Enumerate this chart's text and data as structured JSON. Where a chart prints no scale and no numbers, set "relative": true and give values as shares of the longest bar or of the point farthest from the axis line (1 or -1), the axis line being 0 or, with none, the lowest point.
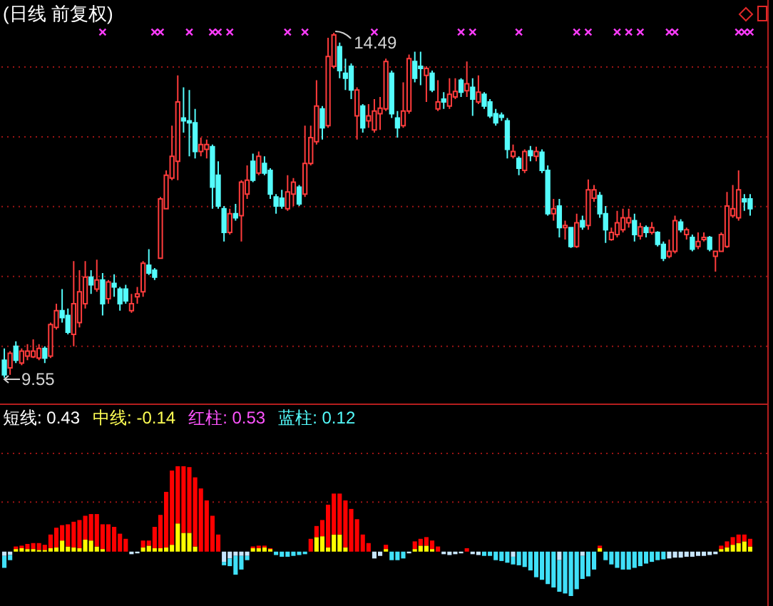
{
  "chart_data": [
    {
      "type": "candlestick",
      "title": "(日线 前复权)",
      "categories": [
        null,
        null,
        null,
        null,
        null,
        null,
        null,
        null,
        null,
        null,
        null,
        null,
        null,
        null,
        null,
        null,
        null,
        null,
        null,
        null,
        null,
        null,
        null,
        null,
        null,
        null,
        null,
        null,
        null,
        null,
        null,
        null,
        null,
        null,
        null,
        null,
        null,
        null,
        null,
        null,
        null,
        null,
        null,
        null,
        null,
        null,
        null,
        null,
        null,
        null,
        null,
        null,
        null,
        null,
        null,
        null,
        null,
        null,
        null,
        null,
        null,
        null,
        null,
        null,
        null,
        null,
        null,
        null,
        null,
        null,
        null,
        null,
        null,
        null,
        null,
        null,
        null,
        null,
        null,
        null,
        null,
        null,
        null,
        null,
        null,
        null,
        null,
        null,
        null,
        null,
        null,
        null,
        null,
        null,
        null,
        null,
        null,
        null,
        null,
        null,
        null,
        null,
        null,
        null,
        null,
        null,
        null,
        null,
        null,
        null,
        null,
        null,
        null,
        null,
        null,
        null,
        null,
        null,
        null,
        null,
        null,
        null,
        null,
        null,
        null,
        null,
        null,
        null,
        null,
        null
      ],
      "ohlc": [
        [
          9.8,
          9.97,
          9.55,
          9.59
        ],
        [
          9.69,
          9.93,
          9.59,
          9.9
        ],
        [
          10.0,
          10.07,
          9.76,
          9.8
        ],
        [
          9.76,
          9.97,
          9.73,
          9.93
        ],
        [
          9.86,
          10.03,
          9.8,
          9.93
        ],
        [
          9.85,
          10.1,
          9.83,
          9.93
        ],
        [
          9.83,
          10.03,
          9.8,
          9.97
        ],
        [
          9.97,
          10.0,
          9.76,
          9.83
        ],
        [
          9.86,
          10.34,
          9.83,
          10.31
        ],
        [
          10.27,
          10.61,
          10.24,
          10.51
        ],
        [
          10.51,
          10.82,
          10.34,
          10.41
        ],
        [
          10.44,
          10.54,
          10.17,
          10.2
        ],
        [
          10.17,
          11.22,
          10.0,
          10.61
        ],
        [
          10.34,
          11.09,
          10.27,
          10.78
        ],
        [
          10.61,
          11.22,
          10.54,
          10.99
        ],
        [
          10.99,
          11.09,
          10.75,
          10.88
        ],
        [
          10.82,
          11.24,
          10.78,
          10.95
        ],
        [
          10.95,
          11.05,
          10.44,
          10.61
        ],
        [
          10.68,
          10.95,
          10.61,
          10.92
        ],
        [
          10.9,
          11.03,
          10.71,
          10.85
        ],
        [
          10.82,
          10.85,
          10.51,
          10.61
        ],
        [
          10.82,
          10.88,
          10.61,
          10.65
        ],
        [
          10.51,
          10.75,
          10.48,
          10.61
        ],
        [
          10.71,
          10.85,
          10.61,
          10.75
        ],
        [
          10.78,
          11.22,
          10.71,
          11.19
        ],
        [
          11.16,
          11.39,
          11.02,
          11.05
        ],
        [
          11.09,
          11.12,
          10.95,
          10.99
        ],
        [
          11.26,
          12.14,
          11.26,
          12.11
        ],
        [
          11.97,
          12.52,
          11.97,
          12.45
        ],
        [
          12.41,
          13.16,
          12.38,
          12.72
        ],
        [
          12.65,
          13.88,
          12.38,
          13.5
        ],
        [
          13.27,
          13.71,
          13.06,
          13.23
        ],
        [
          13.23,
          13.67,
          12.72,
          13.2
        ],
        [
          13.2,
          13.4,
          12.69,
          12.79
        ],
        [
          12.79,
          12.99,
          12.72,
          12.89
        ],
        [
          12.82,
          12.96,
          12.69,
          12.89
        ],
        [
          12.86,
          12.89,
          11.97,
          12.28
        ],
        [
          12.45,
          12.65,
          11.97,
          12.01
        ],
        [
          11.97,
          12.01,
          11.5,
          11.63
        ],
        [
          11.63,
          11.97,
          11.6,
          11.9
        ],
        [
          11.9,
          12.04,
          11.8,
          11.84
        ],
        [
          11.87,
          12.38,
          11.5,
          12.35
        ],
        [
          12.18,
          12.59,
          12.11,
          12.38
        ],
        [
          12.65,
          12.76,
          12.35,
          12.38
        ],
        [
          12.48,
          12.79,
          12.45,
          12.72
        ],
        [
          12.62,
          12.72,
          12.45,
          12.48
        ],
        [
          12.52,
          12.55,
          12.11,
          12.18
        ],
        [
          12.14,
          12.18,
          11.9,
          12.01
        ],
        [
          12.12,
          12.24,
          11.97,
          12.01
        ],
        [
          11.97,
          12.45,
          11.94,
          12.21
        ],
        [
          12.18,
          12.41,
          12.01,
          12.35
        ],
        [
          12.28,
          12.31,
          12.01,
          12.04
        ],
        [
          12.18,
          13.16,
          12.14,
          12.62
        ],
        [
          12.62,
          13.16,
          12.59,
          12.99
        ],
        [
          12.93,
          13.81,
          12.89,
          13.44
        ],
        [
          13.4,
          13.44,
          12.96,
          13.13
        ],
        [
          13.16,
          14.42,
          13.13,
          14.15
        ],
        [
          14.01,
          14.49,
          13.98,
          14.46
        ],
        [
          14.29,
          14.35,
          13.84,
          13.95
        ],
        [
          13.91,
          14.12,
          13.67,
          13.84
        ],
        [
          14.01,
          14.05,
          13.54,
          13.67
        ],
        [
          13.3,
          13.71,
          12.96,
          13.67
        ],
        [
          13.44,
          13.47,
          13.06,
          13.13
        ],
        [
          13.23,
          13.47,
          13.13,
          13.3
        ],
        [
          13.1,
          13.54,
          13.06,
          13.37
        ],
        [
          13.33,
          13.57,
          13.1,
          13.41
        ],
        [
          13.4,
          14.12,
          13.37,
          14.08
        ],
        [
          13.91,
          13.95,
          13.27,
          13.33
        ],
        [
          13.27,
          13.37,
          12.99,
          13.13
        ],
        [
          13.16,
          13.78,
          13.13,
          13.37
        ],
        [
          13.37,
          14.18,
          13.33,
          14.12
        ],
        [
          14.08,
          14.22,
          13.78,
          13.84
        ],
        [
          14.01,
          14.22,
          13.74,
          13.98
        ],
        [
          13.88,
          14.01,
          13.5,
          13.98
        ],
        [
          13.91,
          13.95,
          13.64,
          13.67
        ],
        [
          13.4,
          13.81,
          13.37,
          13.5
        ],
        [
          13.54,
          13.64,
          13.4,
          13.5
        ],
        [
          13.44,
          13.84,
          13.4,
          13.61
        ],
        [
          13.57,
          13.84,
          13.54,
          13.65
        ],
        [
          13.81,
          13.84,
          13.57,
          13.64
        ],
        [
          13.66,
          14.08,
          13.57,
          13.76
        ],
        [
          13.71,
          13.84,
          13.3,
          13.54
        ],
        [
          13.5,
          13.88,
          13.47,
          13.64
        ],
        [
          13.61,
          13.64,
          13.4,
          13.44
        ],
        [
          13.5,
          13.54,
          13.27,
          13.3
        ],
        [
          13.33,
          13.4,
          13.16,
          13.2
        ],
        [
          13.31,
          13.35,
          13.23,
          13.28
        ],
        [
          13.23,
          13.27,
          12.69,
          12.82
        ],
        [
          12.72,
          12.89,
          12.69,
          12.79
        ],
        [
          12.69,
          12.72,
          12.45,
          12.55
        ],
        [
          12.52,
          12.82,
          12.48,
          12.79
        ],
        [
          12.8,
          12.87,
          12.65,
          12.73
        ],
        [
          12.72,
          12.86,
          12.65,
          12.79
        ],
        [
          12.78,
          12.82,
          12.48,
          12.52
        ],
        [
          12.52,
          12.59,
          11.87,
          11.9
        ],
        [
          11.9,
          12.11,
          11.8,
          11.97
        ],
        [
          12.01,
          12.11,
          11.56,
          11.7
        ],
        [
          11.7,
          11.8,
          11.53,
          11.73
        ],
        [
          11.7,
          11.71,
          11.41,
          11.43
        ],
        [
          11.43,
          11.9,
          11.41,
          11.77
        ],
        [
          11.8,
          11.87,
          11.67,
          11.71
        ],
        [
          11.73,
          12.39,
          11.67,
          12.24
        ],
        [
          12.12,
          12.31,
          12.07,
          12.24
        ],
        [
          12.16,
          12.21,
          11.84,
          11.9
        ],
        [
          11.9,
          12.01,
          11.48,
          11.67
        ],
        [
          11.53,
          11.7,
          11.51,
          11.63
        ],
        [
          11.6,
          11.94,
          11.56,
          11.77
        ],
        [
          11.67,
          11.97,
          11.63,
          11.84
        ],
        [
          11.77,
          11.97,
          11.7,
          11.84
        ],
        [
          11.8,
          11.9,
          11.5,
          11.6
        ],
        [
          11.58,
          11.77,
          11.53,
          11.71
        ],
        [
          11.7,
          11.73,
          11.56,
          11.63
        ],
        [
          11.63,
          11.78,
          11.6,
          11.7
        ],
        [
          11.63,
          11.65,
          11.43,
          11.46
        ],
        [
          11.46,
          11.5,
          11.22,
          11.26
        ],
        [
          11.29,
          11.53,
          11.26,
          11.36
        ],
        [
          11.36,
          11.87,
          11.33,
          11.8
        ],
        [
          11.78,
          11.82,
          11.63,
          11.67
        ],
        [
          11.6,
          11.7,
          11.53,
          11.67
        ],
        [
          11.56,
          11.6,
          11.36,
          11.39
        ],
        [
          11.43,
          11.63,
          11.39,
          11.5
        ],
        [
          11.53,
          11.63,
          11.5,
          11.56
        ],
        [
          11.56,
          11.58,
          11.36,
          11.39
        ],
        [
          11.29,
          11.37,
          11.07,
          11.36
        ],
        [
          11.36,
          11.63,
          11.35,
          11.6
        ],
        [
          11.43,
          12.21,
          11.41,
          12.01
        ],
        [
          11.87,
          12.31,
          11.84,
          11.97
        ],
        [
          11.84,
          12.52,
          11.8,
          12.24
        ],
        [
          12.11,
          12.18,
          11.94,
          12.07
        ],
        [
          12.11,
          12.18,
          11.87,
          11.97
        ]
      ],
      "colors": [
        "#54fcfc",
        "#ff3c3c",
        "#54fcfc",
        "#ff3c3c",
        "#ff3c3c",
        "#ff3c3c",
        "#ff3c3c",
        "#54fcfc",
        "#ff3c3c",
        "#ff3c3c",
        "#54fcfc",
        "#54fcfc",
        "#ff3c3c",
        "#ff3c3c",
        "#ff3c3c",
        "#54fcfc",
        "#ff3c3c",
        "#54fcfc",
        "#ff3c3c",
        "#54fcfc",
        "#54fcfc",
        "#54fcfc",
        "#ff3c3c",
        "#ff3c3c",
        "#ff3c3c",
        "#54fcfc",
        "#54fcfc",
        "#ff3c3c",
        "#ff3c3c",
        "#ff3c3c",
        "#ff3c3c",
        "#54fcfc",
        "#54fcfc",
        "#54fcfc",
        "#ff3c3c",
        "#ff3c3c",
        "#54fcfc",
        "#54fcfc",
        "#54fcfc",
        "#ff3c3c",
        "#54fcfc",
        "#ff3c3c",
        "#ff3c3c",
        "#54fcfc",
        "#ff3c3c",
        "#54fcfc",
        "#54fcfc",
        "#54fcfc",
        "#54fcfc",
        "#ff3c3c",
        "#ff3c3c",
        "#54fcfc",
        "#ff3c3c",
        "#ff3c3c",
        "#ff3c3c",
        "#54fcfc",
        "#ff3c3c",
        "#ff3c3c",
        "#54fcfc",
        "#54fcfc",
        "#54fcfc",
        "#ff3c3c",
        "#54fcfc",
        "#ff3c3c",
        "#ff3c3c",
        "#ff3c3c",
        "#ff3c3c",
        "#54fcfc",
        "#54fcfc",
        "#ff3c3c",
        "#ff3c3c",
        "#54fcfc",
        "#54fcfc",
        "#ff3c3c",
        "#54fcfc",
        "#ff3c3c",
        "#54fcfc",
        "#ff3c3c",
        "#ff3c3c",
        "#54fcfc",
        "#ff3c3c",
        "#54fcfc",
        "#ff3c3c",
        "#54fcfc",
        "#54fcfc",
        "#54fcfc",
        "#54fcfc",
        "#54fcfc",
        "#ff3c3c",
        "#54fcfc",
        "#ff3c3c",
        "#54fcfc",
        "#ff3c3c",
        "#54fcfc",
        "#54fcfc",
        "#ff3c3c",
        "#54fcfc",
        "#ff3c3c",
        "#54fcfc",
        "#ff3c3c",
        "#54fcfc",
        "#ff3c3c",
        "#ff3c3c",
        "#54fcfc",
        "#54fcfc",
        "#ff3c3c",
        "#ff3c3c",
        "#ff3c3c",
        "#ff3c3c",
        "#54fcfc",
        "#ff3c3c",
        "#54fcfc",
        "#ff3c3c",
        "#54fcfc",
        "#54fcfc",
        "#ff3c3c",
        "#ff3c3c",
        "#54fcfc",
        "#ff3c3c",
        "#54fcfc",
        "#ff3c3c",
        "#ff3c3c",
        "#54fcfc",
        "#ff3c3c",
        "#ff3c3c",
        "#ff3c3c",
        "#ff3c3c",
        "#ff3c3c",
        "#54fcfc",
        "#54fcfc"
      ],
      "ylim": [
        9.18,
        14.96
      ],
      "yticks": [
        {
          "value": 10,
          "label": null
        },
        {
          "value": 11,
          "label": null
        },
        {
          "value": 12,
          "label": null
        },
        {
          "value": 13,
          "label": null
        },
        {
          "value": 14,
          "label": null
        }
      ],
      "grid": "y",
      "annotations": [
        {
          "text": "14.49",
          "y": 14.49
        },
        "9.55"
      ],
      "series": [
        {
          "type": "scatter",
          "color": "#ff3cff",
          "marker": "cross",
          "values": [
            null,
            null,
            null,
            null,
            null,
            null,
            null,
            null,
            null,
            null,
            null,
            null,
            null,
            null,
            null,
            null,
            null,
            14.5,
            null,
            null,
            null,
            null,
            null,
            null,
            null,
            null,
            14.5,
            14.5,
            null,
            null,
            null,
            null,
            14.5,
            null,
            null,
            null,
            14.5,
            14.5,
            null,
            14.5,
            null,
            null,
            null,
            null,
            null,
            null,
            null,
            null,
            null,
            14.5,
            null,
            null,
            14.5,
            null,
            null,
            null,
            null,
            null,
            null,
            null,
            null,
            null,
            null,
            null,
            14.5,
            null,
            null,
            null,
            null,
            null,
            null,
            null,
            null,
            null,
            null,
            null,
            null,
            null,
            null,
            14.5,
            null,
            14.5,
            null,
            null,
            null,
            null,
            null,
            null,
            null,
            14.5,
            null,
            null,
            null,
            null,
            null,
            null,
            null,
            null,
            null,
            14.5,
            null,
            14.5,
            null,
            null,
            null,
            null,
            14.5,
            null,
            14.5,
            null,
            14.5,
            null,
            null,
            null,
            null,
            14.5,
            14.5,
            null,
            null,
            null,
            null,
            null,
            null,
            null,
            null,
            null,
            null,
            14.5,
            14.5,
            14.5
          ]
        }
      ]
    },
    {
      "type": "bar",
      "relative": true,
      "stacked": true,
      "categories": [
        null,
        null,
        null,
        null,
        null,
        null,
        null,
        null,
        null,
        null,
        null,
        null,
        null,
        null,
        null,
        null,
        null,
        null,
        null,
        null,
        null,
        null,
        null,
        null,
        null,
        null,
        null,
        null,
        null,
        null,
        null,
        null,
        null,
        null,
        null,
        null,
        null,
        null,
        null,
        null,
        null,
        null,
        null,
        null,
        null,
        null,
        null,
        null,
        null,
        null,
        null,
        null,
        null,
        null,
        null,
        null,
        null,
        null,
        null,
        null,
        null,
        null,
        null,
        null,
        null,
        null,
        null,
        null,
        null,
        null,
        null,
        null,
        null,
        null,
        null,
        null,
        null,
        null,
        null,
        null,
        null,
        null,
        null,
        null,
        null,
        null,
        null,
        null,
        null,
        null,
        null,
        null,
        null,
        null,
        null,
        null,
        null,
        null,
        null,
        null,
        null,
        null,
        null,
        null,
        null,
        null,
        null,
        null,
        null,
        null,
        null,
        null,
        null,
        null,
        null,
        null,
        null,
        null,
        null,
        null,
        null,
        null,
        null,
        null,
        null,
        null,
        null,
        null,
        null,
        null
      ],
      "annotations": [
        "短线: 0.43",
        "中线: -0.14",
        "红柱: 0.53",
        "蓝柱: 0.12"
      ],
      "ref_lines": [
        {
          "axis": "y",
          "value": 0.58,
          "color": "#9a1414",
          "line_style": "dotted"
        },
        {
          "axis": "y",
          "value": 1.15,
          "color": "#9a1414",
          "line_style": "dotted"
        }
      ],
      "series": [
        {
          "color": "#ffff00",
          "values": [
            null,
            null,
            0.03,
            0.04,
            0.03,
            0.03,
            0.02,
            0.02,
            0.04,
            0.05,
            0.13,
            0.06,
            0.05,
            0.04,
            0.14,
            0.13,
            0.06,
            0.03,
            null,
            null,
            null,
            null,
            null,
            null,
            0.05,
            0.07,
            0.04,
            0.04,
            0.05,
            0.08,
            0.33,
            0.22,
            0.22,
            0.06,
            null,
            null,
            null,
            null,
            null,
            null,
            null,
            null,
            null,
            0.04,
            0.04,
            0.05,
            0.03,
            null,
            null,
            null,
            null,
            null,
            null,
            null,
            0.17,
            0.18,
            0.05,
            0.2,
            0.2,
            0.05,
            null,
            null,
            null,
            null,
            null,
            null,
            0.03,
            null,
            null,
            null,
            null,
            0.03,
            0.07,
            0.07,
            0.03,
            null,
            null,
            null,
            null,
            null,
            null,
            null,
            null,
            null,
            null,
            null,
            null,
            null,
            null,
            null,
            null,
            null,
            null,
            null,
            null,
            null,
            null,
            null,
            null,
            null,
            null,
            null,
            null,
            0.04,
            null,
            null,
            null,
            null,
            null,
            null,
            null,
            null,
            null,
            null,
            null,
            null,
            null,
            null,
            null,
            null,
            null,
            null,
            null,
            null,
            0.03,
            0.05,
            0.08,
            0.1,
            0.12,
            0.06
          ]
        },
        {
          "color": "#ff0000",
          "values": [
            null,
            null,
            0.03,
            0.03,
            0.06,
            0.07,
            0.08,
            0.06,
            0.16,
            0.23,
            0.18,
            0.26,
            0.3,
            0.33,
            0.28,
            0.31,
            0.38,
            0.29,
            0.32,
            0.29,
            0.21,
            0.15,
            null,
            null,
            0.08,
            0.06,
            0.25,
            0.39,
            0.65,
            0.87,
            0.67,
            0.78,
            0.77,
            0.81,
            0.74,
            0.6,
            0.42,
            0.2,
            null,
            null,
            null,
            null,
            null,
            0.02,
            0.03,
            0.02,
            0.01,
            null,
            null,
            null,
            null,
            null,
            null,
            0.15,
            0.13,
            0.19,
            0.5,
            0.48,
            0.48,
            0.55,
            0.5,
            0.38,
            0.2,
            0.1,
            null,
            null,
            0.05,
            null,
            null,
            null,
            null,
            0.09,
            0.08,
            0.1,
            0.1,
            0.06,
            null,
            null,
            null,
            null,
            0.04,
            null,
            null,
            null,
            null,
            null,
            null,
            null,
            null,
            null,
            null,
            null,
            null,
            null,
            null,
            null,
            null,
            null,
            null,
            null,
            null,
            null,
            null,
            0.03,
            null,
            null,
            null,
            null,
            null,
            null,
            null,
            null,
            null,
            null,
            null,
            null,
            null,
            null,
            null,
            null,
            null,
            null,
            null,
            null,
            0.04,
            0.07,
            0.09,
            0.1,
            0.08,
            0.09
          ]
        },
        {
          "color": "#c8e6ff",
          "values": [
            -0.05,
            -0.04,
            null,
            null,
            null,
            null,
            null,
            null,
            null,
            null,
            null,
            null,
            null,
            null,
            null,
            null,
            null,
            null,
            null,
            null,
            null,
            null,
            -0.03,
            -0.02,
            null,
            null,
            null,
            null,
            null,
            null,
            null,
            null,
            null,
            null,
            null,
            null,
            null,
            null,
            -0.12,
            -0.08,
            -0.05,
            -0.05,
            -0.05,
            null,
            null,
            null,
            null,
            null,
            null,
            null,
            null,
            null,
            null,
            null,
            null,
            null,
            null,
            null,
            null,
            null,
            null,
            null,
            null,
            null,
            -0.08,
            -0.05,
            null,
            null,
            null,
            null,
            -0.02,
            null,
            null,
            null,
            null,
            null,
            -0.03,
            -0.04,
            -0.03,
            -0.02,
            null,
            -0.03,
            -0.04,
            null,
            null,
            null,
            null,
            null,
            -0.06,
            null,
            null,
            null,
            null,
            null,
            null,
            null,
            -0.1,
            null,
            null,
            null,
            -0.05,
            null,
            null,
            null,
            null,
            null,
            null,
            null,
            null,
            null,
            null,
            null,
            null,
            null,
            null,
            -0.08,
            -0.07,
            -0.07,
            -0.06,
            -0.06,
            -0.05,
            -0.05,
            -0.04,
            -0.03,
            null,
            null,
            null,
            null,
            null,
            null
          ]
        },
        {
          "color": "#40e0f8",
          "values": [
            -0.14,
            -0.06,
            null,
            null,
            null,
            null,
            null,
            null,
            null,
            null,
            null,
            null,
            null,
            null,
            null,
            null,
            null,
            null,
            null,
            null,
            null,
            null,
            null,
            null,
            null,
            null,
            null,
            null,
            null,
            null,
            null,
            null,
            null,
            null,
            null,
            null,
            null,
            null,
            -0.04,
            -0.09,
            -0.22,
            -0.16,
            -0.05,
            null,
            null,
            null,
            null,
            -0.04,
            -0.06,
            -0.06,
            -0.05,
            -0.04,
            -0.03,
            null,
            null,
            null,
            null,
            null,
            null,
            null,
            null,
            null,
            null,
            null,
            null,
            null,
            null,
            -0.1,
            -0.1,
            -0.08,
            null,
            null,
            null,
            null,
            null,
            null,
            null,
            null,
            null,
            null,
            null,
            null,
            null,
            -0.05,
            -0.05,
            -0.1,
            -0.11,
            -0.13,
            -0.09,
            -0.16,
            -0.18,
            -0.22,
            -0.3,
            -0.33,
            -0.38,
            -0.42,
            -0.37,
            -0.49,
            -0.52,
            -0.44,
            -0.27,
            -0.29,
            -0.21,
            null,
            -0.1,
            -0.15,
            -0.19,
            -0.21,
            -0.21,
            -0.19,
            -0.17,
            -0.14,
            -0.12,
            -0.1,
            -0.09,
            null,
            null,
            null,
            null,
            null,
            null,
            null,
            null,
            null,
            null,
            null,
            null,
            null,
            null,
            null
          ]
        }
      ]
    }
  ]
}
